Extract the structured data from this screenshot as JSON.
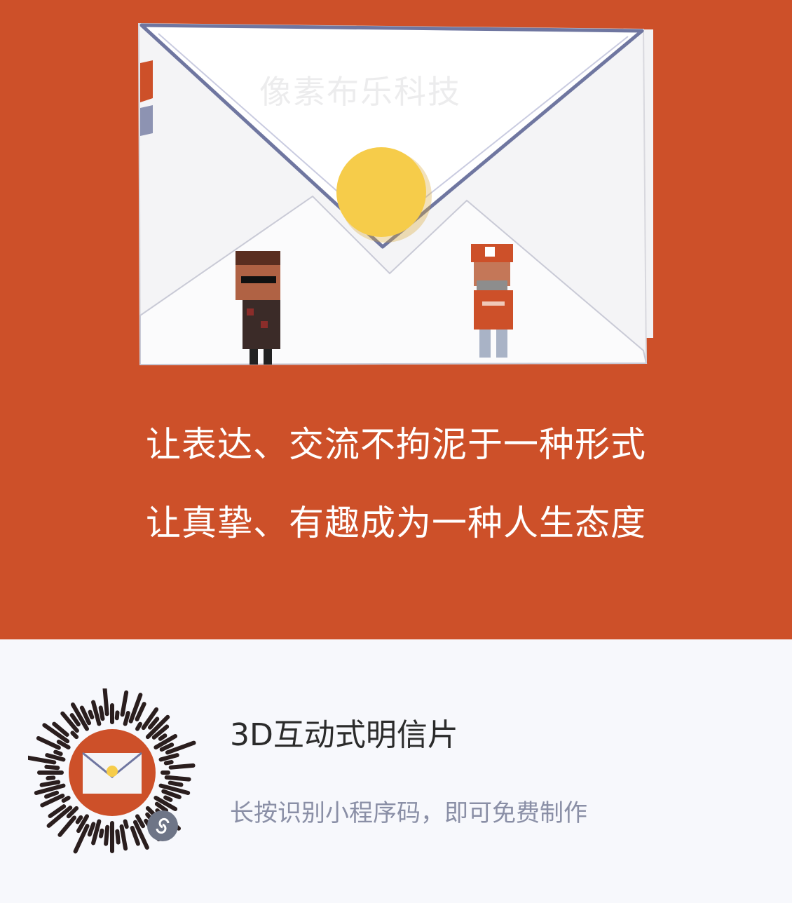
{
  "watermark": "像素布乐科技",
  "slogan": {
    "line1": "让表达、交流不拘泥于一种形式",
    "line2": "让真挚、有趣成为一种人生态度"
  },
  "footer": {
    "title": "3D互动式明信片",
    "subtitle": "长按识别小程序码，即可免费制作"
  },
  "icons": {
    "envelope": "envelope-illustration",
    "seal": "seal-icon",
    "mini_program": "mini-program-logo-icon",
    "qr": "qr-code"
  },
  "colors": {
    "brand_orange": "#cd5029",
    "seal_yellow": "#f6cc4a",
    "footer_bg": "#f7f8fc",
    "subtitle_gray": "#8a8fa6"
  }
}
